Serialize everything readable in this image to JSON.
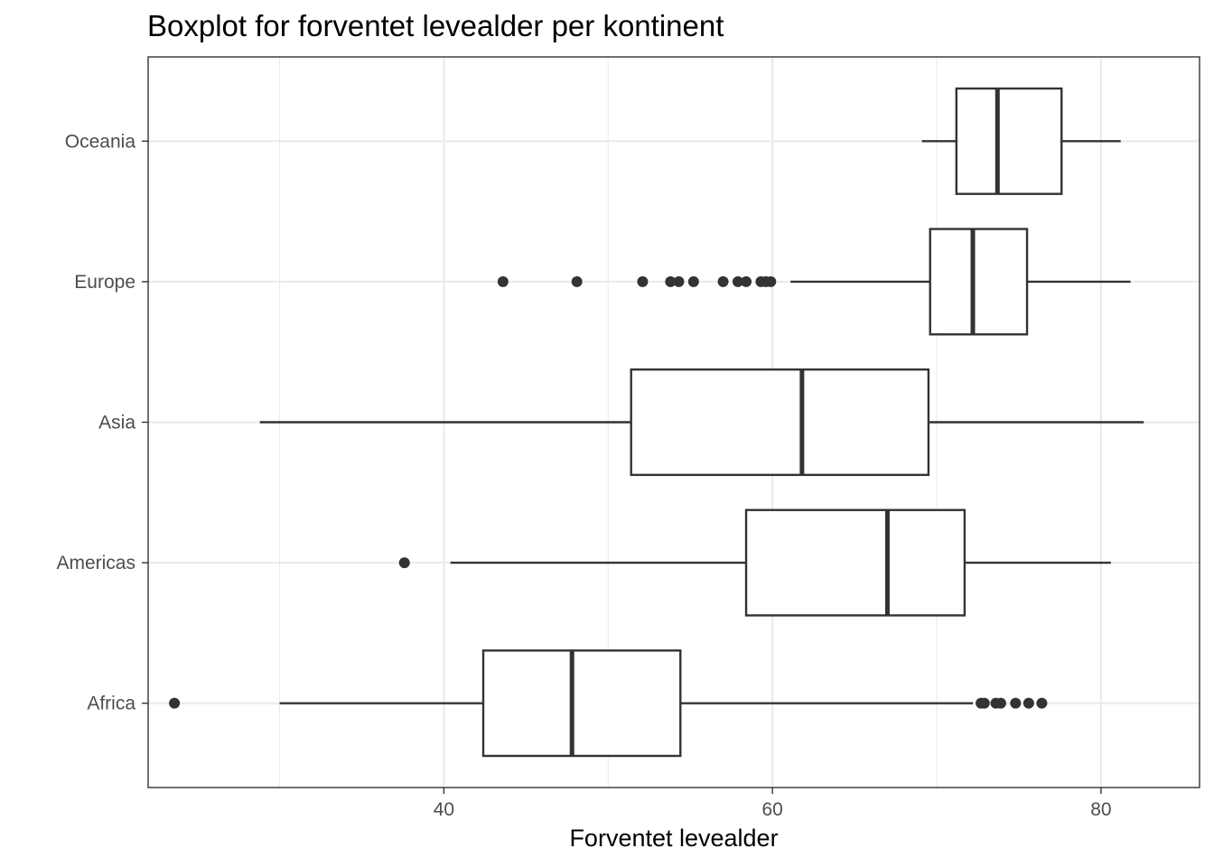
{
  "chart_data": {
    "type": "boxplot",
    "orientation": "horizontal",
    "title": "Boxplot for forventet levealder per kontinent",
    "xlabel": "Forventet levealder",
    "ylabel": "",
    "xlim": [
      22,
      86
    ],
    "x_ticks": [
      40,
      60,
      80
    ],
    "x_tick_labels": [
      "40",
      "60",
      "80"
    ],
    "grid": true,
    "categories": [
      "Africa",
      "Americas",
      "Asia",
      "Europe",
      "Oceania"
    ],
    "boxes": [
      {
        "category": "Africa",
        "whisker_low": 30.0,
        "q1": 42.4,
        "median": 47.8,
        "q3": 54.4,
        "whisker_high": 72.2,
        "outliers": [
          23.6,
          72.7,
          72.9,
          73.6,
          73.9,
          74.8,
          75.6,
          76.4
        ]
      },
      {
        "category": "Americas",
        "whisker_low": 40.4,
        "q1": 58.4,
        "median": 67.0,
        "q3": 71.7,
        "whisker_high": 80.6,
        "outliers": [
          37.6
        ]
      },
      {
        "category": "Asia",
        "whisker_low": 28.8,
        "q1": 51.4,
        "median": 61.8,
        "q3": 69.5,
        "whisker_high": 82.6,
        "outliers": []
      },
      {
        "category": "Europe",
        "whisker_low": 61.1,
        "q1": 69.6,
        "median": 72.2,
        "q3": 75.5,
        "whisker_high": 81.8,
        "outliers": [
          43.6,
          48.1,
          52.1,
          53.8,
          54.3,
          55.2,
          57.0,
          57.9,
          58.4,
          59.3,
          59.6,
          59.9
        ]
      },
      {
        "category": "Oceania",
        "whisker_low": 69.1,
        "q1": 71.2,
        "median": 73.7,
        "q3": 77.6,
        "whisker_high": 81.2,
        "outliers": []
      }
    ],
    "colors": {
      "stroke": "#333333",
      "fill": "#ffffff",
      "grid": "#ebebeb",
      "panel_border": "#333333"
    }
  }
}
